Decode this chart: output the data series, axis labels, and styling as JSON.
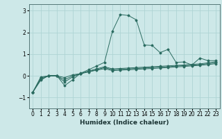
{
  "xlabel": "Humidex (Indice chaleur)",
  "background_color": "#cde8e8",
  "grid_color": "#aed4d4",
  "line_color": "#2a6b60",
  "xlim": [
    -0.5,
    23.5
  ],
  "ylim": [
    -1.5,
    3.3
  ],
  "xticks": [
    0,
    1,
    2,
    3,
    4,
    5,
    6,
    7,
    8,
    9,
    10,
    11,
    12,
    13,
    14,
    15,
    16,
    17,
    18,
    19,
    20,
    21,
    22,
    23
  ],
  "yticks": [
    -1,
    0,
    1,
    2,
    3
  ],
  "series": [
    {
      "x": [
        0,
        1,
        2,
        3,
        4,
        5,
        6,
        7,
        8,
        9,
        10,
        11,
        12,
        13,
        14,
        15,
        16,
        17,
        18,
        19,
        20,
        21,
        22,
        23
      ],
      "y": [
        -0.75,
        -0.2,
        0.02,
        0.02,
        -0.45,
        -0.18,
        0.12,
        0.28,
        0.45,
        0.62,
        2.05,
        2.82,
        2.78,
        2.58,
        1.42,
        1.4,
        1.07,
        1.22,
        0.62,
        0.64,
        0.5,
        0.82,
        0.7,
        0.7
      ]
    },
    {
      "x": [
        0,
        1,
        2,
        3,
        4,
        5,
        6,
        7,
        8,
        9,
        10,
        11,
        12,
        13,
        14,
        15,
        16,
        17,
        18,
        19,
        20,
        21,
        22,
        23
      ],
      "y": [
        -0.75,
        -0.15,
        0.0,
        0.0,
        -0.28,
        -0.05,
        0.1,
        0.22,
        0.32,
        0.42,
        0.32,
        0.34,
        0.36,
        0.38,
        0.4,
        0.42,
        0.44,
        0.46,
        0.48,
        0.5,
        0.53,
        0.55,
        0.6,
        0.65
      ]
    },
    {
      "x": [
        0,
        1,
        2,
        3,
        4,
        5,
        6,
        7,
        8,
        9,
        10,
        11,
        12,
        13,
        14,
        15,
        16,
        17,
        18,
        19,
        20,
        21,
        22,
        23
      ],
      "y": [
        -0.75,
        -0.1,
        0.0,
        0.0,
        -0.18,
        0.0,
        0.1,
        0.2,
        0.28,
        0.38,
        0.28,
        0.3,
        0.32,
        0.34,
        0.36,
        0.38,
        0.4,
        0.42,
        0.45,
        0.47,
        0.49,
        0.52,
        0.56,
        0.6
      ]
    },
    {
      "x": [
        0,
        1,
        2,
        3,
        4,
        5,
        6,
        7,
        8,
        9,
        10,
        11,
        12,
        13,
        14,
        15,
        16,
        17,
        18,
        19,
        20,
        21,
        22,
        23
      ],
      "y": [
        -0.75,
        -0.05,
        0.0,
        0.0,
        -0.08,
        0.05,
        0.1,
        0.18,
        0.26,
        0.33,
        0.24,
        0.26,
        0.28,
        0.3,
        0.32,
        0.34,
        0.36,
        0.38,
        0.41,
        0.43,
        0.46,
        0.48,
        0.52,
        0.56
      ]
    }
  ],
  "tick_fontsize": 5.5,
  "xlabel_fontsize": 6.5
}
